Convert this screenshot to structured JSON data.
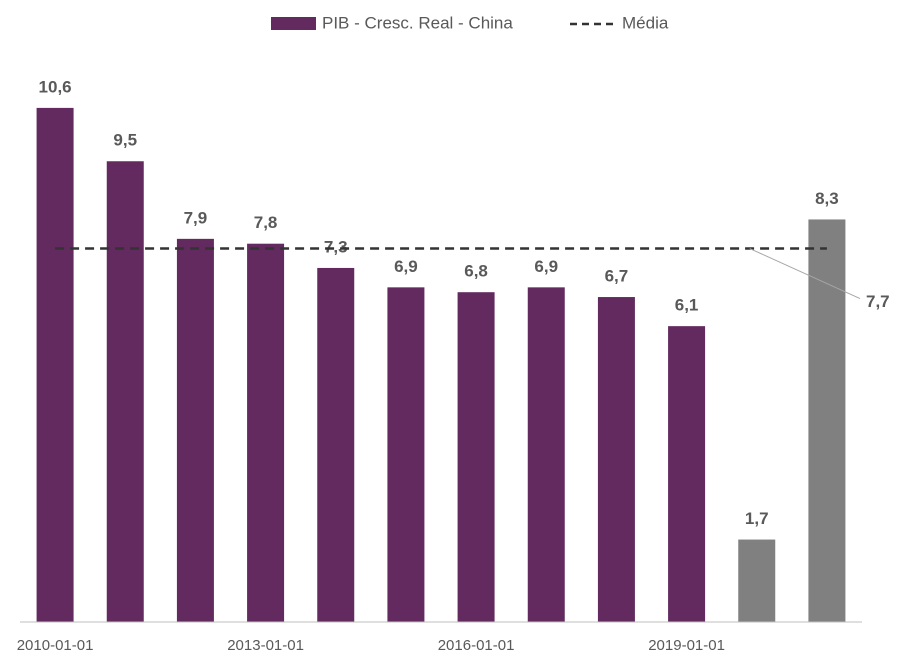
{
  "chart_data": {
    "type": "bar",
    "categories": [
      "2010-01-01",
      null,
      null,
      "2013-01-01",
      null,
      null,
      "2016-01-01",
      null,
      null,
      "2019-01-01",
      null,
      null
    ],
    "series": [
      {
        "name": "PIB - Cresc. Real - China",
        "color": "#622a5f",
        "colors": [
          "#622a5f",
          "#622a5f",
          "#622a5f",
          "#622a5f",
          "#622a5f",
          "#622a5f",
          "#622a5f",
          "#622a5f",
          "#622a5f",
          "#622a5f",
          "#808080",
          "#808080"
        ],
        "values": [
          10.6,
          9.5,
          7.9,
          7.8,
          7.3,
          6.9,
          6.8,
          6.9,
          6.7,
          6.1,
          1.7,
          8.3
        ],
        "value_labels": [
          "10,6",
          "9,5",
          "7,9",
          "7,8",
          "7,3",
          "6,9",
          "6,8",
          "6,9",
          "6,7",
          "6,1",
          "1,7",
          "8,3"
        ]
      }
    ],
    "reference_line": {
      "name": "Média",
      "value": 7.7,
      "label": "7,7",
      "color": "#333333"
    },
    "ylim": [
      0,
      12
    ]
  }
}
